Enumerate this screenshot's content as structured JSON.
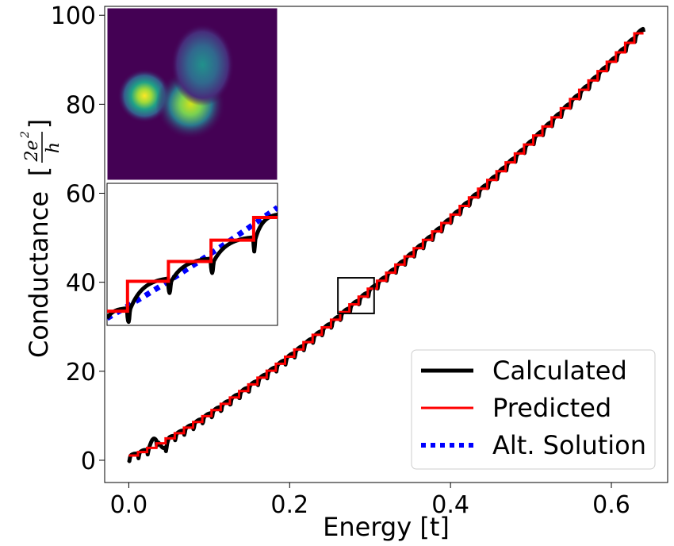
{
  "chart_data": {
    "type": "line",
    "title": "",
    "xlabel": "Energy [t]",
    "ylabel": "Conductance",
    "ylabel_unit": {
      "open": "[",
      "numerator": "2e",
      "numerator_exp": "2",
      "denominator": "h",
      "close": "]"
    },
    "xlim": [
      -0.03,
      0.67
    ],
    "ylim": [
      -5,
      102
    ],
    "x_ticks": [
      {
        "value": 0.0,
        "label": "0.0"
      },
      {
        "value": 0.2,
        "label": "0.2"
      },
      {
        "value": 0.4,
        "label": "0.4"
      },
      {
        "value": 0.6,
        "label": "0.6"
      }
    ],
    "y_ticks": [
      {
        "value": 0,
        "label": "0"
      },
      {
        "value": 20,
        "label": "20"
      },
      {
        "value": 40,
        "label": "40"
      },
      {
        "value": 60,
        "label": "60"
      },
      {
        "value": 80,
        "label": "80"
      },
      {
        "value": 100,
        "label": "100"
      }
    ],
    "grid": false,
    "legend_position": "bottom-right",
    "series": [
      {
        "name": "Calculated",
        "color": "#000000",
        "style": "solid-thick"
      },
      {
        "name": "Predicted",
        "color": "#ff0000",
        "style": "solid"
      },
      {
        "name": "Alt. Solution",
        "color": "#0000ff",
        "style": "dotted"
      }
    ],
    "curve_model": {
      "energy_range": [
        0.0,
        0.64
      ],
      "conductance_range": [
        0.8,
        97
      ],
      "step_count": 56
    },
    "zoom_region": {
      "x": [
        0.26,
        0.305
      ],
      "y": [
        33,
        41
      ]
    },
    "inset_image": {
      "description_colormap": "viridis",
      "blobs": [
        {
          "cx": 0.22,
          "cy": 0.51,
          "intensity": "high"
        },
        {
          "cx": 0.49,
          "cy": 0.56,
          "intensity": "high"
        },
        {
          "cx": 0.56,
          "cy": 0.33,
          "intensity": "medium"
        }
      ]
    }
  }
}
